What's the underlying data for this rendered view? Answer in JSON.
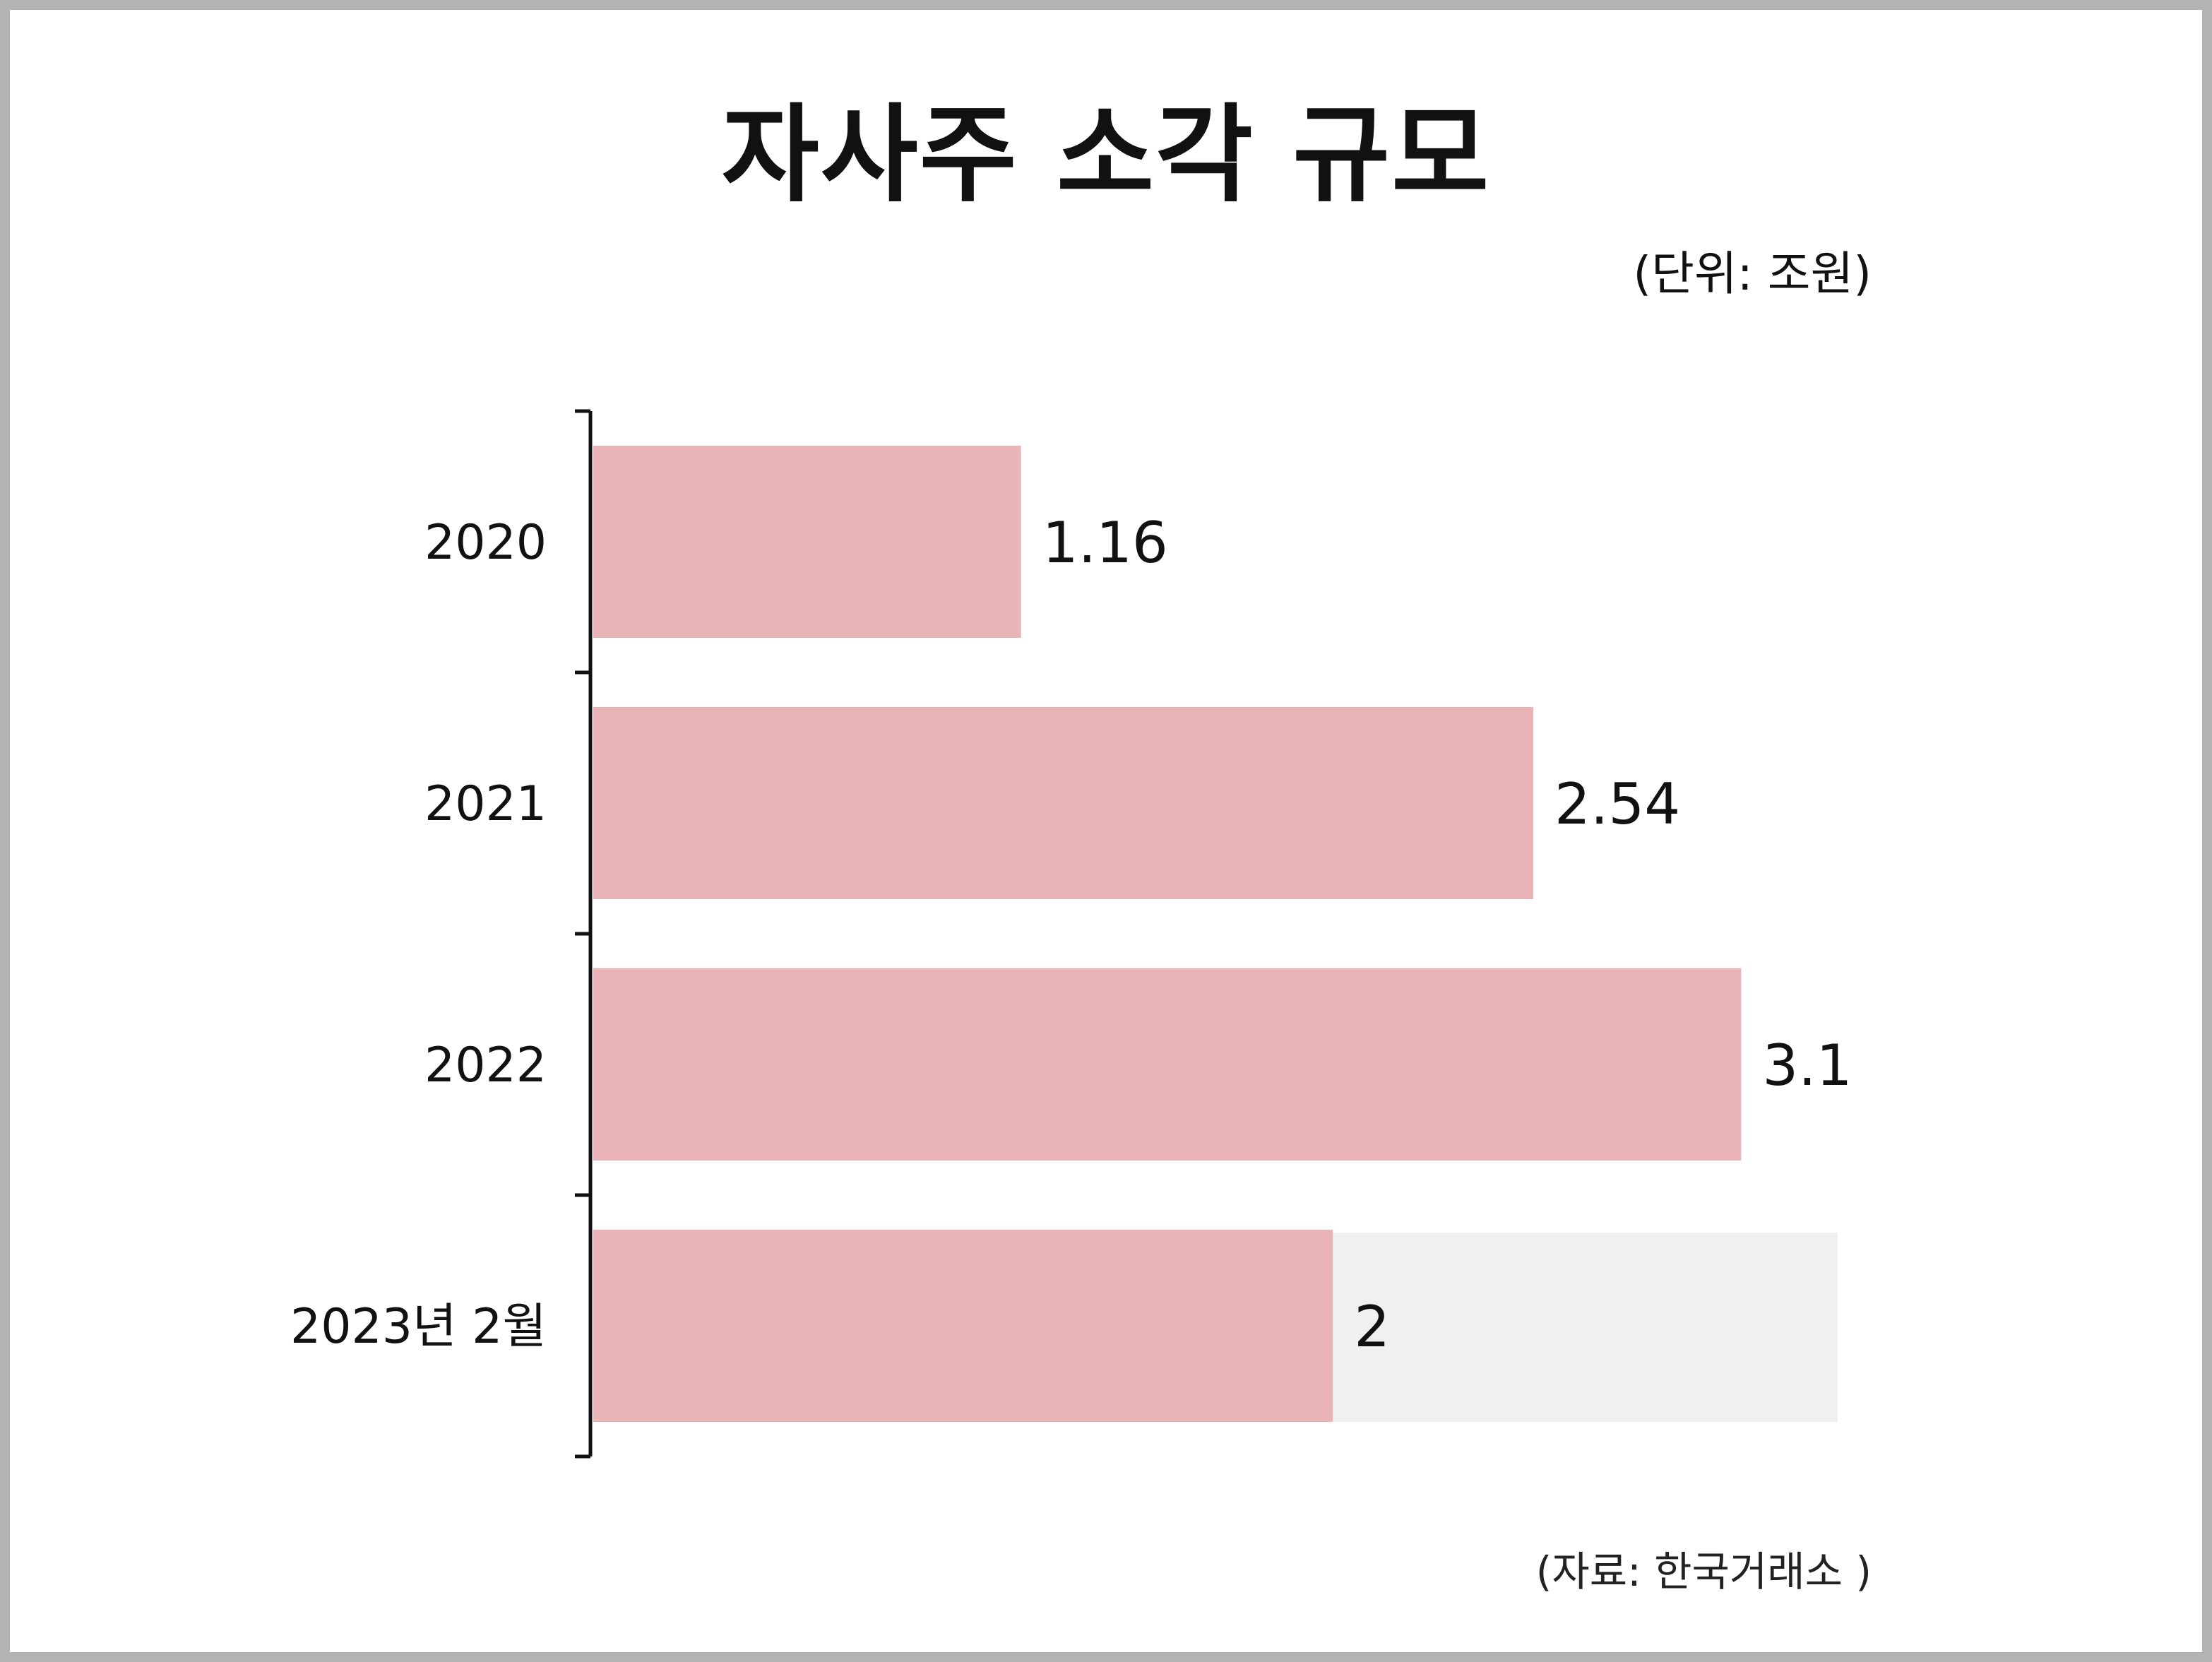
{
  "chart_data": {
    "type": "bar",
    "orientation": "horizontal",
    "title": "자사주 소각 규모",
    "unit_note": "(단위: 조원)",
    "source_note": "(자료: 한국거래소 )",
    "categories": [
      "2020",
      "2021",
      "2022",
      "2023년 2월"
    ],
    "values": [
      1.16,
      2.54,
      3.1,
      2
    ],
    "value_labels": [
      "1.16",
      "2.54",
      "3.1",
      "2"
    ],
    "highlight": {
      "category": "2023년 2월",
      "background_extent": 3.36
    },
    "xlim": [
      0,
      3.36
    ],
    "grid": false,
    "legend": "none",
    "colors": {
      "bar": "#eab4b6",
      "highlight_background": "#f0f0f0",
      "axis": "#111111",
      "frame": "#b3b3b3"
    }
  }
}
